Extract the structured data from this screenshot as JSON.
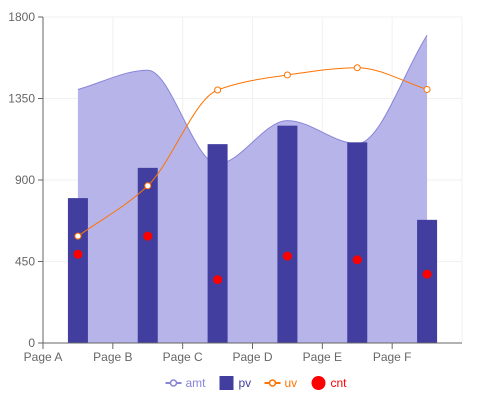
{
  "chart_data": {
    "type": "composed",
    "categories": [
      "Page A",
      "Page B",
      "Page C",
      "Page D",
      "Page E",
      "Page F"
    ],
    "ylim": [
      0,
      1800
    ],
    "yticks": [
      0,
      450,
      900,
      1350,
      1800
    ],
    "grid": true,
    "legend_position": "bottom",
    "x_points": [
      0.5,
      1.5,
      2.5,
      3.5,
      4.5,
      5.5
    ],
    "series": [
      {
        "name": "amt",
        "kind": "area",
        "color": "#8884d8",
        "fill": "#b7b4ea",
        "values": [
          1400,
          1506,
          989,
          1228,
          1100,
          1700
        ]
      },
      {
        "name": "pv",
        "kind": "bar",
        "color": "#413ea0",
        "values": [
          800,
          967,
          1098,
          1200,
          1108,
          680
        ]
      },
      {
        "name": "uv",
        "kind": "line",
        "color": "#ff7300",
        "values": [
          590,
          868,
          1397,
          1480,
          1520,
          1400
        ]
      },
      {
        "name": "cnt",
        "kind": "scatter",
        "color": "#ff0000",
        "values": [
          490,
          590,
          350,
          480,
          460,
          380
        ]
      }
    ]
  }
}
